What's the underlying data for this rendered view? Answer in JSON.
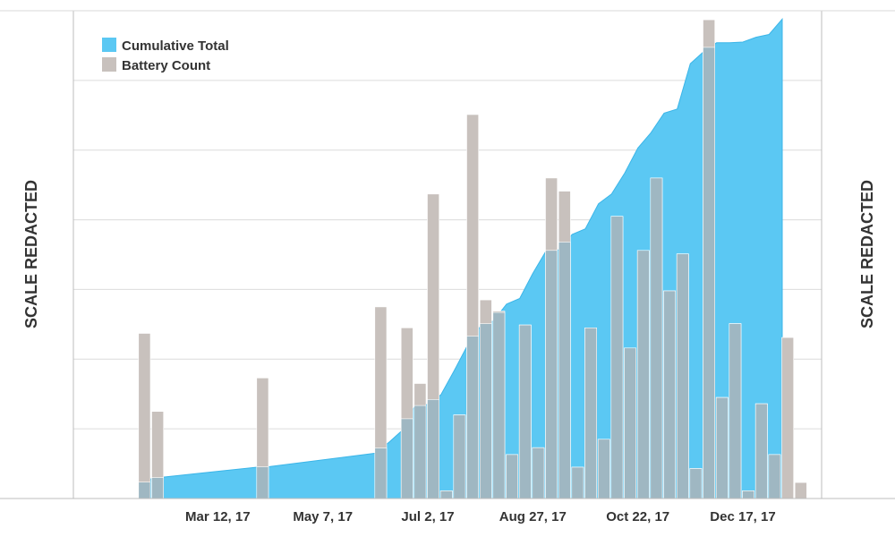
{
  "chart_data": {
    "type": "bar",
    "title": "",
    "ylabel_left": "SCALE REDACTED",
    "ylabel_right": "SCALE REDACTED",
    "x_ticks": [
      "Mar 12, 17",
      "May 7, 17",
      "Jul 2, 17",
      "Aug 27, 17",
      "Oct 22, 17",
      "Dec 17, 17"
    ],
    "x_tick_dates": [
      "2017-03-12",
      "2017-05-07",
      "2017-07-02",
      "2017-08-27",
      "2017-10-22",
      "2017-12-17"
    ],
    "x_range": [
      "2016-12-25",
      "2018-01-28"
    ],
    "ylim": [
      0,
      7
    ],
    "grid": true,
    "legend_position": "top-left",
    "colors": {
      "cumulative": "#5bc8f3",
      "cumulative_stroke": "#3bb5e8",
      "battery": "#c8c1bd",
      "overlap": "#9fb7c2"
    },
    "series": [
      {
        "name": "Cumulative Total",
        "kind": "area",
        "x": [
          "2017-01-29",
          "2017-02-05",
          "2017-02-12",
          "2017-04-02",
          "2017-04-09",
          "2017-06-04",
          "2017-06-11",
          "2017-06-18",
          "2017-06-25",
          "2017-07-02",
          "2017-07-09",
          "2017-07-16",
          "2017-07-23",
          "2017-07-30",
          "2017-08-06",
          "2017-08-13",
          "2017-08-20",
          "2017-08-27",
          "2017-09-03",
          "2017-09-10",
          "2017-09-17",
          "2017-09-24",
          "2017-10-01",
          "2017-10-08",
          "2017-10-15",
          "2017-10-22",
          "2017-10-29",
          "2017-11-05",
          "2017-11-12",
          "2017-11-19",
          "2017-11-26",
          "2017-12-03",
          "2017-12-10",
          "2017-12-17",
          "2017-12-24",
          "2017-12-31",
          "2018-01-07"
        ],
        "values": [
          0.18,
          0.29,
          0.31,
          0.45,
          0.46,
          0.65,
          0.8,
          0.97,
          1.32,
          1.35,
          1.49,
          1.83,
          2.19,
          2.47,
          2.55,
          2.79,
          2.87,
          3.23,
          3.55,
          3.57,
          3.79,
          3.87,
          4.23,
          4.37,
          4.67,
          5.03,
          5.25,
          5.53,
          5.59,
          6.24,
          6.41,
          6.54,
          6.54,
          6.55,
          6.62,
          6.66,
          6.88
        ]
      },
      {
        "name": "Battery Count",
        "kind": "bar",
        "x": [
          "2017-01-29",
          "2017-02-05",
          "2017-04-02",
          "2017-06-04",
          "2017-06-18",
          "2017-06-25",
          "2017-07-02",
          "2017-07-09",
          "2017-07-16",
          "2017-07-23",
          "2017-07-30",
          "2017-08-06",
          "2017-08-13",
          "2017-08-20",
          "2017-08-27",
          "2017-09-03",
          "2017-09-10",
          "2017-09-17",
          "2017-09-24",
          "2017-10-01",
          "2017-10-08",
          "2017-10-15",
          "2017-10-22",
          "2017-10-29",
          "2017-11-05",
          "2017-11-12",
          "2017-11-19",
          "2017-11-26",
          "2017-12-03",
          "2017-12-10",
          "2017-12-17",
          "2017-12-24",
          "2017-12-31",
          "2018-01-07",
          "2018-01-14"
        ],
        "values": [
          2.37,
          1.25,
          1.73,
          2.75,
          2.45,
          1.65,
          4.37,
          0.11,
          1.2,
          5.51,
          2.85,
          2.69,
          0.63,
          2.49,
          0.73,
          4.6,
          4.41,
          0.45,
          2.45,
          0.85,
          4.05,
          2.16,
          3.56,
          4.6,
          2.98,
          3.51,
          0.43,
          6.87,
          1.45,
          2.51,
          0.11,
          1.36,
          0.63,
          2.31,
          0.23
        ]
      }
    ]
  }
}
